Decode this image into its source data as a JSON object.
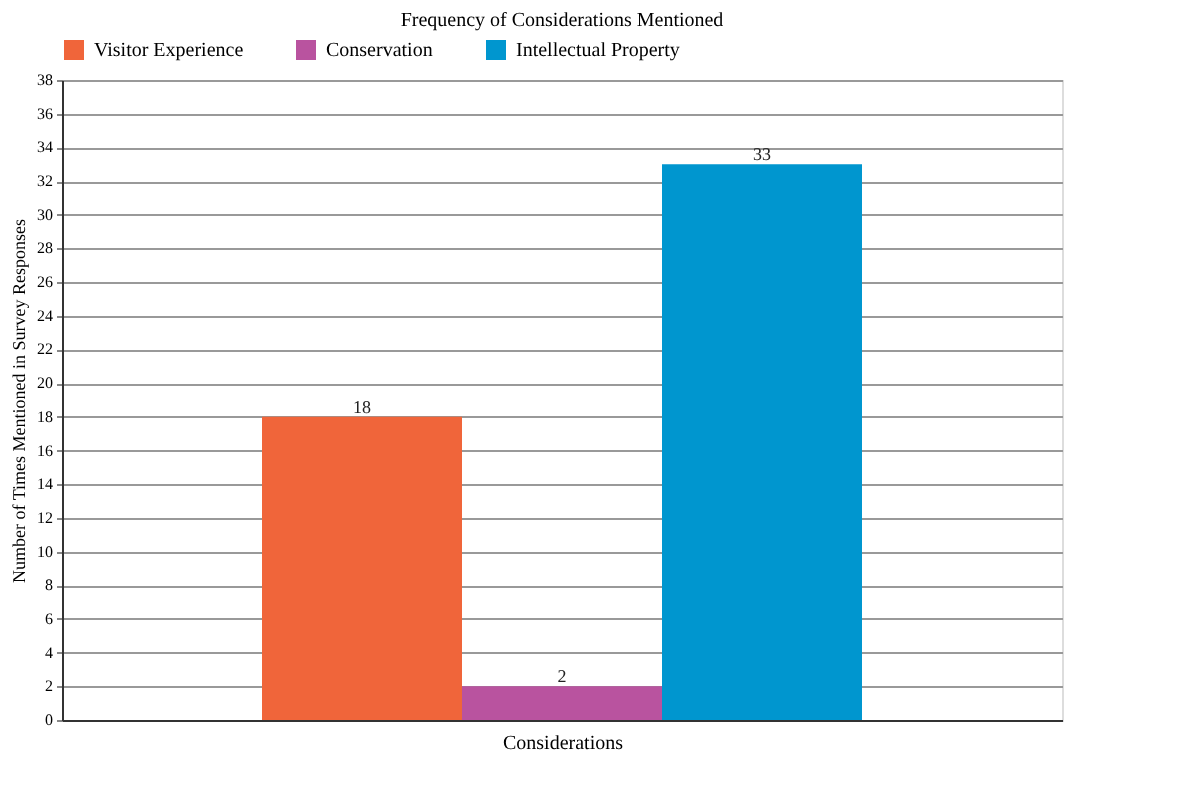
{
  "chart_data": {
    "type": "bar",
    "title": "Frequency of Considerations Mentioned",
    "xlabel": "Considerations",
    "ylabel": "Number of Times Mentioned in Survey Responses",
    "categories": [
      null
    ],
    "series": [
      {
        "name": "Visitor Experience",
        "color": "#f0653a",
        "values": [
          18
        ]
      },
      {
        "name": "Conservation",
        "color": "#b9539f",
        "values": [
          2
        ]
      },
      {
        "name": "Intellectual Property",
        "color": "#0096cf",
        "values": [
          33
        ]
      }
    ],
    "ylim": [
      0,
      38
    ],
    "yticks": [
      0,
      2,
      4,
      6,
      8,
      10,
      12,
      14,
      16,
      18,
      20,
      22,
      24,
      26,
      28,
      30,
      32,
      34,
      36,
      38
    ],
    "grid": "y",
    "legend": "top left",
    "data_labels": true
  }
}
